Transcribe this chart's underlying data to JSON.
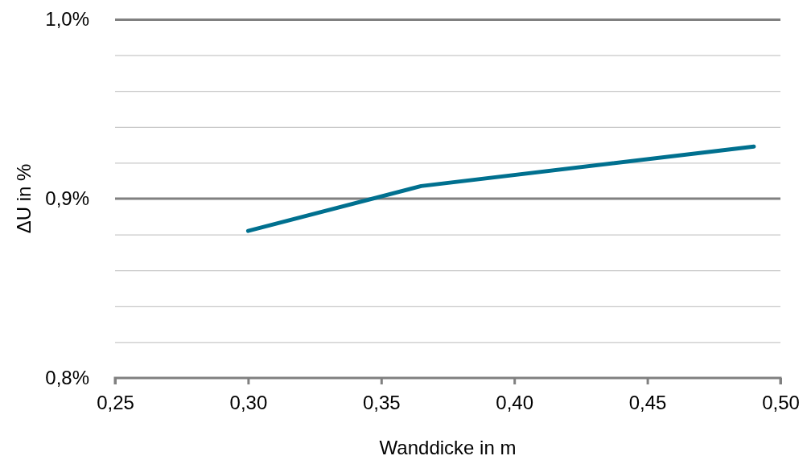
{
  "chart_data": {
    "type": "line",
    "xlabel": "Wanddicke in m",
    "ylabel": "ΔU in %",
    "x": [
      0.3,
      0.365,
      0.49
    ],
    "series": [
      {
        "color": "#00708f",
        "values": [
          0.882,
          0.907,
          0.929
        ]
      }
    ],
    "xlim": [
      0.25,
      0.5
    ],
    "xticks": [
      {
        "value": 0.25,
        "label": "0,25"
      },
      {
        "value": 0.3,
        "label": "0,30"
      },
      {
        "value": 0.35,
        "label": "0,35"
      },
      {
        "value": 0.4,
        "label": "0,40"
      },
      {
        "value": 0.45,
        "label": "0,45"
      },
      {
        "value": 0.5,
        "label": "0,50"
      }
    ],
    "ylim": [
      0.8,
      1.0
    ],
    "yticks": [
      {
        "value": 0.8,
        "label": "0,8%"
      },
      {
        "value": 0.82,
        "label": null
      },
      {
        "value": 0.84,
        "label": null
      },
      {
        "value": 0.86,
        "label": null
      },
      {
        "value": 0.88,
        "label": null
      },
      {
        "value": 0.9,
        "label": "0,9%"
      },
      {
        "value": 0.92,
        "label": null
      },
      {
        "value": 0.94,
        "label": null
      },
      {
        "value": 0.96,
        "label": null
      },
      {
        "value": 0.98,
        "label": null
      },
      {
        "value": 1.0,
        "label": "1,0%"
      }
    ],
    "ref_lines": [
      {
        "axis": "y",
        "value": 0.9,
        "color": "#808080"
      }
    ],
    "grid": "y",
    "legend": false,
    "marker": "none",
    "line_style": "solid"
  }
}
